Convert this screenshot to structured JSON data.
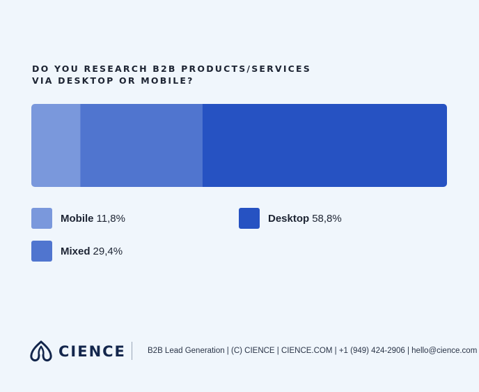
{
  "chart_data": {
    "type": "bar",
    "stacked": true,
    "orientation": "horizontal",
    "title_lines": [
      "DO YOU RESEARCH B2B PRODUCTS/SERVICES",
      "VIA DESKTOP OR MOBILE?"
    ],
    "series": [
      {
        "name": "Mobile",
        "value": 11.8,
        "label": "11,8%",
        "color": "#7a98dc"
      },
      {
        "name": "Mixed",
        "value": 29.4,
        "label": "29,4%",
        "color": "#5075cf"
      },
      {
        "name": "Desktop",
        "value": 58.8,
        "label": "58,8%",
        "color": "#2652c2"
      }
    ],
    "legend_placement": "bottom"
  },
  "footer": {
    "brand": "CIENCE",
    "logo_icon": "cience-logo-icon",
    "text": "B2B Lead Generation | (C) CIENCE | CIENCE.COM | +1 (949) 424-2906 | hello@cience.com"
  }
}
